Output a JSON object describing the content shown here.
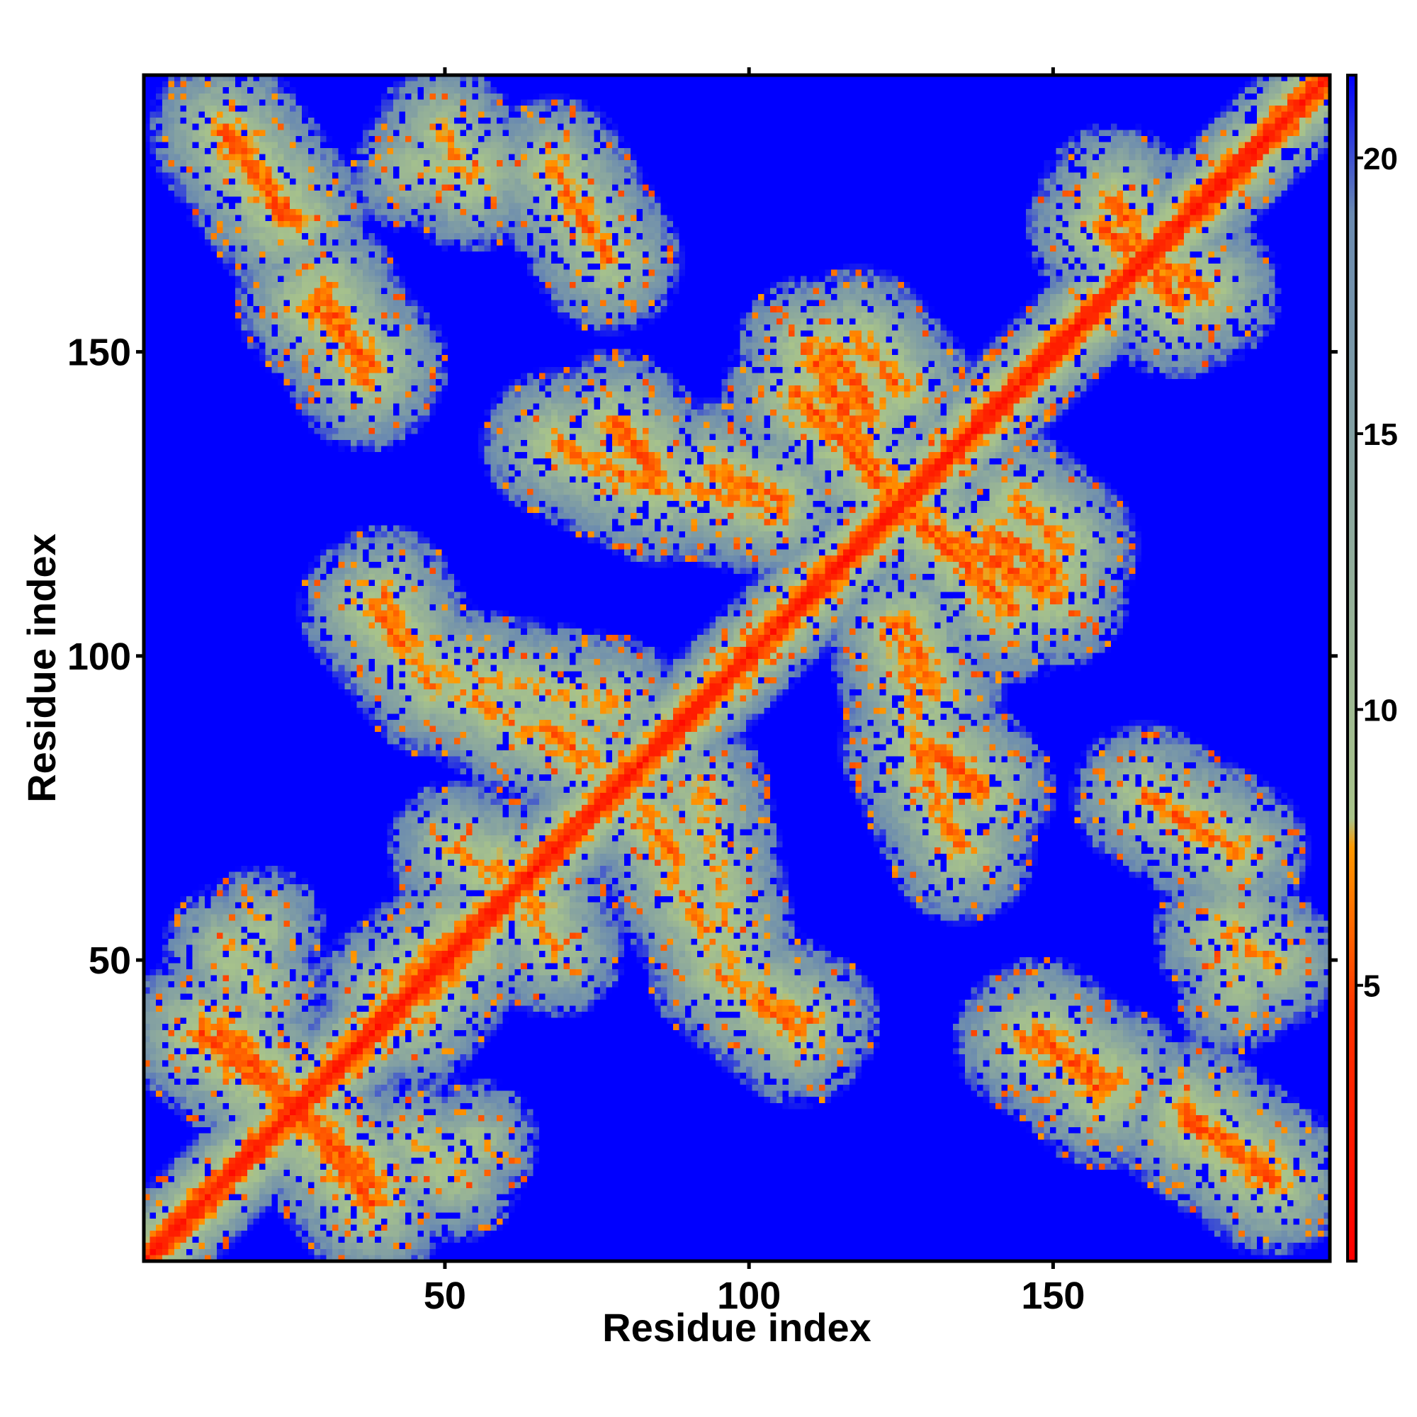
{
  "chart_data": {
    "type": "heatmap",
    "description_kind": "residue contact / distance map",
    "x_axis": {
      "label": "Residue index",
      "range": [
        1,
        195
      ],
      "ticks": [
        50,
        100,
        150
      ],
      "tick_labels": [
        "50",
        "100",
        "150"
      ]
    },
    "y_axis": {
      "label": "Residue index",
      "range": [
        1,
        195
      ],
      "ticks": [
        50,
        100,
        150
      ],
      "tick_labels": [
        "50",
        "100",
        "150"
      ]
    },
    "colorbar": {
      "range": [
        0,
        21.5
      ],
      "ticks": [
        5,
        10,
        15,
        20
      ],
      "tick_labels": [
        "5",
        "10",
        "15",
        "20"
      ],
      "stops": [
        {
          "value": 0,
          "color": "#ff0000"
        },
        {
          "value": 4.5,
          "color": "#ff3300"
        },
        {
          "value": 7.5,
          "color": "#ff9900"
        },
        {
          "value": 8.0,
          "color": "#a9c48a"
        },
        {
          "value": 13.0,
          "color": "#8fab9c"
        },
        {
          "value": 19.0,
          "color": "#6a8ab0"
        },
        {
          "value": 21.5,
          "color": "#0000ff"
        }
      ],
      "background_color": "#0000ff"
    },
    "n_residues": 195,
    "diagonal_value": 2.0,
    "contact_bands": [
      {
        "from": [
          15,
          185
        ],
        "to": [
          25,
          172
        ],
        "value": 5.5
      },
      {
        "from": [
          28,
          158
        ],
        "to": [
          38,
          148
        ],
        "value": 5.5
      },
      {
        "from": [
          68,
          180
        ],
        "to": [
          75,
          168
        ],
        "value": 6.0
      },
      {
        "from": [
          45,
          180
        ],
        "to": [
          57,
          180
        ],
        "value": 8.0
      },
      {
        "from": [
          38,
          108
        ],
        "to": [
          46,
          98
        ],
        "value": 6.0
      },
      {
        "from": [
          46,
          98
        ],
        "to": [
          78,
          92
        ],
        "value": 7.0
      },
      {
        "from": [
          68,
          135
        ],
        "to": [
          85,
          127
        ],
        "value": 6.0
      },
      {
        "from": [
          88,
          128
        ],
        "to": [
          105,
          124
        ],
        "value": 6.5
      },
      {
        "from": [
          110,
          150
        ],
        "to": [
          124,
          125
        ],
        "value": 5.5
      },
      {
        "from": [
          118,
          152
        ],
        "to": [
          125,
          144
        ],
        "value": 6.0
      },
      {
        "from": [
          128,
          122
        ],
        "to": [
          143,
          108
        ],
        "value": 5.5
      },
      {
        "from": [
          140,
          120
        ],
        "to": [
          150,
          114
        ],
        "value": 5.0
      },
      {
        "from": [
          126,
          105
        ],
        "to": [
          130,
          94
        ],
        "value": 6.0
      },
      {
        "from": [
          130,
          85
        ],
        "to": [
          138,
          78
        ],
        "value": 5.5
      },
      {
        "from": [
          165,
          77
        ],
        "to": [
          180,
          68
        ],
        "value": 6.0
      },
      {
        "from": [
          82,
          75
        ],
        "to": [
          88,
          67
        ],
        "value": 6.0
      },
      {
        "from": [
          88,
          63
        ],
        "to": [
          94,
          53
        ],
        "value": 6.5
      },
      {
        "from": [
          95,
          48
        ],
        "to": [
          110,
          40
        ],
        "value": 6.5
      },
      {
        "from": [
          10,
          38
        ],
        "to": [
          25,
          26
        ],
        "value": 5.0
      },
      {
        "from": [
          25,
          26
        ],
        "to": [
          38,
          14
        ],
        "value": 5.0
      },
      {
        "from": [
          146,
          37
        ],
        "to": [
          160,
          30
        ],
        "value": 5.5
      },
      {
        "from": [
          172,
          24
        ],
        "to": [
          186,
          14
        ],
        "value": 5.0
      },
      {
        "from": [
          52,
          68
        ],
        "to": [
          66,
          58
        ],
        "value": 6.5
      },
      {
        "from": [
          40,
          45
        ],
        "to": [
          52,
          55
        ],
        "value": 7.0
      },
      {
        "from": [
          178,
          54
        ],
        "to": [
          186,
          50
        ],
        "value": 6.5
      },
      {
        "from": [
          158,
          170
        ],
        "to": [
          175,
          160
        ],
        "value": 5.5
      },
      {
        "from": [
          48,
          15
        ],
        "to": [
          55,
          20
        ],
        "value": 8.0
      },
      {
        "from": [
          14,
          52
        ],
        "to": [
          20,
          45
        ],
        "value": 8.0
      }
    ]
  }
}
